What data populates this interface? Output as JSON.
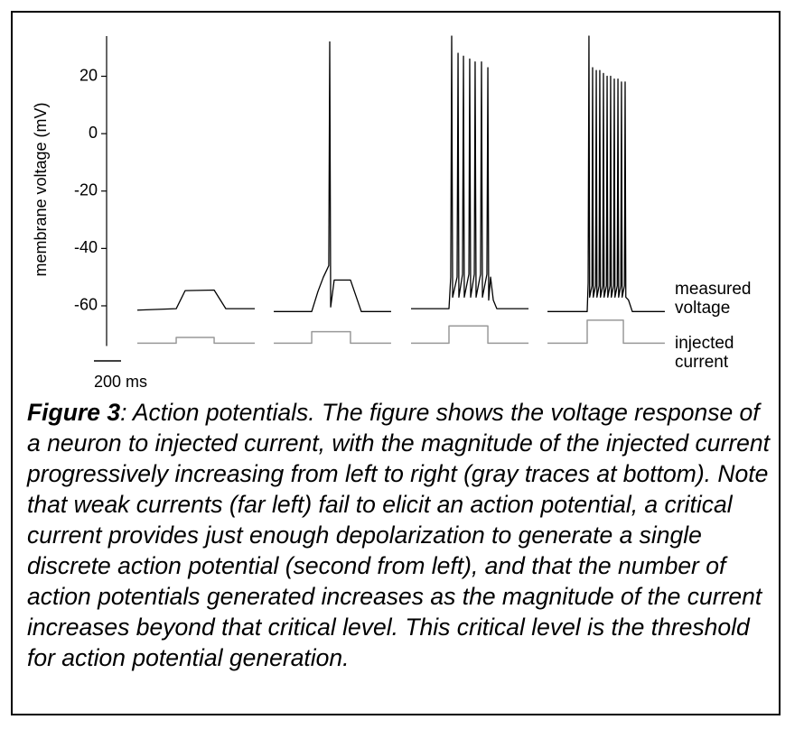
{
  "chart_data": {
    "type": "line",
    "ylabel": "membrane voltage (mV)",
    "ylim": [
      -74,
      34
    ],
    "yticks": [
      20,
      0,
      -20,
      -40,
      -60
    ],
    "xlim": [
      0,
      4280
    ],
    "scale_bar": {
      "value": 200,
      "label": "200 ms"
    },
    "series": [
      {
        "name": "measured voltage",
        "color": "#000000",
        "x": [
          320,
          607,
          673,
          887,
          973,
          1187,
          null,
          1327,
          1607,
          1653,
          1693,
          1733,
          1740,
          1747,
          1773,
          1893,
          1973,
          2193,
          null,
          2340,
          2620,
          2633,
          2640,
          2647,
          2680,
          2687,
          2693,
          2720,
          2727,
          2733,
          2767,
          2773,
          2780,
          2807,
          2813,
          2820,
          2853,
          2860,
          2867,
          2900,
          2907,
          2913,
          2927,
          2947,
          2973,
          3207,
          null,
          3347,
          3640,
          3647,
          3653,
          3658,
          3675,
          3680,
          3685,
          3702,
          3707,
          3712,
          3728,
          3733,
          3738,
          3755,
          3760,
          3765,
          3782,
          3787,
          3792,
          3808,
          3813,
          3818,
          3835,
          3840,
          3845,
          3862,
          3867,
          3872,
          3888,
          3893,
          3898,
          3915,
          3920,
          3925,
          3945,
          3973,
          4213
        ],
        "values": [
          -61.5,
          -61,
          -54.7,
          -54.5,
          -61,
          -61,
          null,
          -62,
          -62,
          -55,
          -50,
          -46,
          32,
          -60.4,
          -51,
          -51,
          -62,
          -62,
          null,
          -61,
          -61,
          -50,
          34,
          -57,
          -50,
          28,
          -57,
          -49,
          27,
          -57,
          -49,
          26,
          -57,
          -49,
          25,
          -57,
          -49,
          25,
          -57,
          -49,
          23,
          -58,
          -50,
          -58,
          -61,
          -61,
          null,
          -62,
          -62,
          -52,
          34,
          -57,
          -53,
          23,
          -57,
          -53,
          22,
          -57,
          -53,
          22,
          -57,
          -53,
          21,
          -57,
          -53,
          20,
          -57,
          -53,
          20,
          -57,
          -53,
          19,
          -57,
          -53,
          19,
          -57,
          -53,
          18,
          -57,
          -53,
          18,
          -57,
          -58,
          -62,
          -62
        ]
      },
      {
        "name": "injected current",
        "color": "#999999",
        "x": [
          320,
          607,
          607,
          887,
          887,
          1187,
          null,
          1327,
          1607,
          1607,
          1893,
          1893,
          2193,
          null,
          2340,
          2620,
          2620,
          2907,
          2907,
          3207,
          null,
          3347,
          3640,
          3640,
          3907,
          3907,
          4213
        ],
        "values": [
          -73,
          -73,
          -71,
          -71,
          -73,
          -73,
          null,
          -73,
          -73,
          -69,
          -69,
          -73,
          -73,
          null,
          -73,
          -73,
          -67,
          -67,
          -73,
          -73,
          null,
          -73,
          -73,
          -65,
          -65,
          -73,
          -73
        ]
      }
    ]
  },
  "caption": {
    "label": "Figure 3",
    "text": ": Action potentials. The figure shows the voltage response of a neuron to injected current, with the magnitude of the injected current progressively increasing from left to right (gray traces at bottom). Note that weak currents (far left) fail to elicit an action potential, a critical current provides just enough depolarization to generate a single discrete action potential (second from left), and that the number of action potentials generated increases as the magnitude of the current increases beyond that critical level.  This critical level is the threshold for action potential generation."
  }
}
